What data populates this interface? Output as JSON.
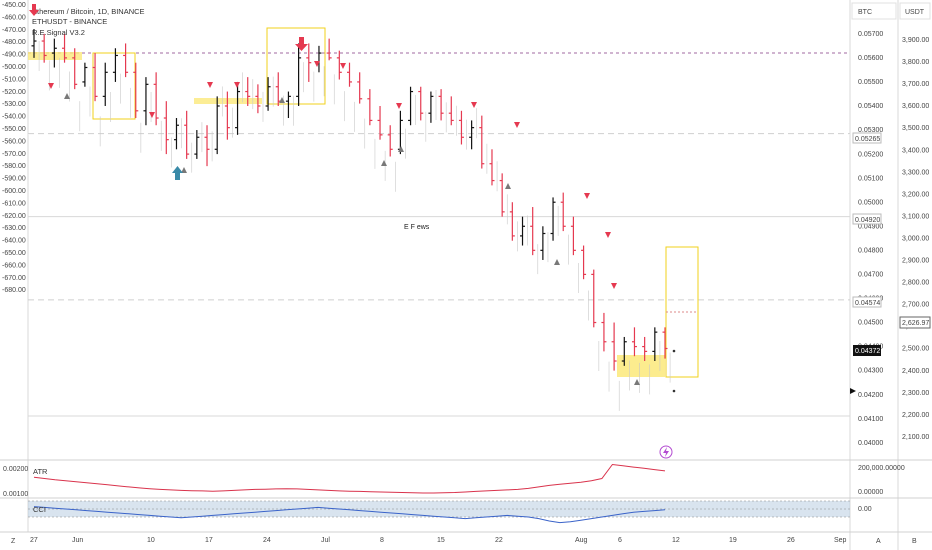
{
  "legend": {
    "line1": "Ethereum / Bitcoin, 1D, BINANCE",
    "line2": "ETHUSDT - BINANCE",
    "line3": "R.E.Signal V3.2"
  },
  "annotations": {
    "ewave": "E F ews",
    "atr_label": "ATR",
    "cci_label": "CCI"
  },
  "currency_btc": "BTC",
  "currency_usdt": "USDT",
  "bottom_icons": {
    "a": "A",
    "b": "B",
    "z": "Z"
  },
  "badges": {
    "btc_last": "0.04372",
    "usdt_last": "2,626.97",
    "lvl_05265": "0.05265",
    "lvl_04920": "0.04920",
    "lvl_04574": "0.04574"
  },
  "colors": {
    "bull": "#111111",
    "bear": "#e53950",
    "white_candle_outline": "#9b9b9b",
    "signal_up": "#787878",
    "signal_down": "#e53950",
    "box": "#f2d21b",
    "box_fill": "#fbe97a",
    "atr": "#d9334c",
    "cci": "#3a63c9",
    "cci_band": "#b9cde2",
    "arrow_down": "#e53950",
    "arrow_up": "#3a8aa8"
  },
  "chart_data": {
    "type": "candlestick",
    "left_axis": {
      "ticks": [
        "-450.00",
        "-460.00",
        "-470.00",
        "-480.00",
        "-490.00",
        "-500.00",
        "-510.00",
        "-520.00",
        "-530.00",
        "-540.00",
        "-550.00",
        "-560.00",
        "-570.00",
        "-580.00",
        "-590.00",
        "-600.00",
        "-610.00",
        "-620.00",
        "-630.00",
        "-640.00",
        "-650.00",
        "-660.00",
        "-670.00",
        "-680.00"
      ]
    },
    "btc_axis": {
      "ticks": [
        "0.05700",
        "0.05600",
        "0.05500",
        "0.05400",
        "0.05300",
        "0.05200",
        "0.05100",
        "0.05000",
        "0.04900",
        "0.04800",
        "0.04700",
        "0.04600",
        "0.04500",
        "0.04400",
        "0.04300",
        "0.04200",
        "0.04100",
        "0.04000"
      ]
    },
    "usdt_axis": {
      "ticks": [
        "3,900.00",
        "3,800.00",
        "3,700.00",
        "3,600.00",
        "3,500.00",
        "3,400.00",
        "3,300.00",
        "3,200.00",
        "3,100.00",
        "3,000.00",
        "2,900.00",
        "2,800.00",
        "2,700.00",
        "2,600.00",
        "2,500.00",
        "2,400.00",
        "2,300.00",
        "2,200.00",
        "2,100.00"
      ]
    },
    "x_axis": {
      "ticks": [
        "27",
        "Jun",
        "10",
        "17",
        "24",
        "Jul",
        "8",
        "15",
        "22",
        "Aug",
        "6",
        "12",
        "19",
        "26",
        "Sep"
      ]
    },
    "atr_axis": {
      "left_ticks": [
        "0.00200",
        "0.00100"
      ],
      "right_ticks": [
        "200,000.00000",
        "0.00000"
      ]
    },
    "cci_axis": {
      "right_ticks": [
        "0.00"
      ]
    },
    "horizontal_levels_btc": [
      0.05265,
      0.0492,
      0.04574
    ],
    "candles_btc": [
      [
        0.0563,
        0.057,
        0.0558,
        0.0565
      ],
      [
        0.0565,
        0.0568,
        0.0556,
        0.0559
      ],
      [
        0.056,
        0.0566,
        0.0554,
        0.0562
      ],
      [
        0.0562,
        0.0568,
        0.0556,
        0.0558
      ],
      [
        0.0558,
        0.0562,
        0.0545,
        0.0547
      ],
      [
        0.0548,
        0.0556,
        0.0546,
        0.0554
      ],
      [
        0.0554,
        0.056,
        0.054,
        0.0542
      ],
      [
        0.0542,
        0.0556,
        0.0538,
        0.0552
      ],
      [
        0.0552,
        0.0562,
        0.0548,
        0.0559
      ],
      [
        0.0559,
        0.0564,
        0.055,
        0.0552
      ],
      [
        0.0552,
        0.0556,
        0.0533,
        0.0536
      ],
      [
        0.0536,
        0.055,
        0.053,
        0.0547
      ],
      [
        0.0547,
        0.0552,
        0.053,
        0.0533
      ],
      [
        0.0533,
        0.054,
        0.0518,
        0.0524
      ],
      [
        0.0524,
        0.0533,
        0.052,
        0.053
      ],
      [
        0.053,
        0.0536,
        0.0516,
        0.0518
      ],
      [
        0.0518,
        0.0528,
        0.0516,
        0.0525
      ],
      [
        0.0525,
        0.053,
        0.0513,
        0.052
      ],
      [
        0.052,
        0.0542,
        0.0518,
        0.0538
      ],
      [
        0.0538,
        0.0544,
        0.0524,
        0.0529
      ],
      [
        0.0529,
        0.0548,
        0.0526,
        0.0544
      ],
      [
        0.0544,
        0.055,
        0.0538,
        0.0542
      ],
      [
        0.0542,
        0.0547,
        0.0535,
        0.0538
      ],
      [
        0.0538,
        0.055,
        0.0536,
        0.0546
      ],
      [
        0.0546,
        0.0552,
        0.0538,
        0.054
      ],
      [
        0.054,
        0.0544,
        0.0533,
        0.0542
      ],
      [
        0.0542,
        0.0564,
        0.0538,
        0.0558
      ],
      [
        0.0558,
        0.0564,
        0.0548,
        0.0556
      ],
      [
        0.0556,
        0.0563,
        0.0552,
        0.056
      ],
      [
        0.056,
        0.0566,
        0.0557,
        0.0558
      ],
      [
        0.0558,
        0.0561,
        0.0549,
        0.0552
      ],
      [
        0.0552,
        0.0556,
        0.0546,
        0.0548
      ],
      [
        0.0548,
        0.0552,
        0.0539,
        0.0541
      ],
      [
        0.0541,
        0.0545,
        0.053,
        0.0532
      ],
      [
        0.0532,
        0.0538,
        0.0524,
        0.0526
      ],
      [
        0.0526,
        0.053,
        0.0517,
        0.052
      ],
      [
        0.052,
        0.0536,
        0.0518,
        0.0532
      ],
      [
        0.0532,
        0.0546,
        0.053,
        0.0544
      ],
      [
        0.0544,
        0.0546,
        0.0532,
        0.0535
      ],
      [
        0.0535,
        0.0544,
        0.0531,
        0.0542
      ],
      [
        0.0542,
        0.0545,
        0.0532,
        0.0535
      ],
      [
        0.0535,
        0.0542,
        0.053,
        0.0532
      ],
      [
        0.0532,
        0.0536,
        0.0522,
        0.0525
      ],
      [
        0.0525,
        0.0532,
        0.052,
        0.0529
      ],
      [
        0.0529,
        0.0534,
        0.0512,
        0.0514
      ],
      [
        0.0514,
        0.052,
        0.0505,
        0.0507
      ],
      [
        0.0507,
        0.051,
        0.0492,
        0.0494
      ],
      [
        0.0494,
        0.0498,
        0.0482,
        0.0484
      ],
      [
        0.0484,
        0.0492,
        0.048,
        0.0488
      ],
      [
        0.0488,
        0.0496,
        0.0476,
        0.0478
      ],
      [
        0.0478,
        0.0488,
        0.0474,
        0.0485
      ],
      [
        0.0485,
        0.05,
        0.0482,
        0.0498
      ],
      [
        0.0498,
        0.0502,
        0.0486,
        0.0488
      ],
      [
        0.0488,
        0.0492,
        0.0476,
        0.0478
      ],
      [
        0.0478,
        0.048,
        0.0466,
        0.0468
      ],
      [
        0.0468,
        0.047,
        0.0446,
        0.0448
      ],
      [
        0.0448,
        0.0452,
        0.0436,
        0.044
      ],
      [
        0.044,
        0.0448,
        0.0428,
        0.0432
      ],
      [
        0.0432,
        0.0442,
        0.043,
        0.044
      ],
      [
        0.044,
        0.0446,
        0.0434,
        0.0438
      ],
      [
        0.0438,
        0.0442,
        0.0432,
        0.0436
      ],
      [
        0.0436,
        0.0446,
        0.0432,
        0.0444
      ],
      [
        0.0444,
        0.0446,
        0.0433,
        0.04372
      ]
    ],
    "atr_series": [
      0.0021,
      0.00205,
      0.002,
      0.00196,
      0.00192,
      0.00188,
      0.00184,
      0.0018,
      0.00176,
      0.00172,
      0.00168,
      0.00165,
      0.00162,
      0.0016,
      0.00158,
      0.00157,
      0.00156,
      0.00155,
      0.00156,
      0.00158,
      0.0016,
      0.00162,
      0.00163,
      0.00164,
      0.00165,
      0.00164,
      0.00162,
      0.0016,
      0.00158,
      0.00156,
      0.00155,
      0.00154,
      0.00153,
      0.00152,
      0.00151,
      0.0015,
      0.00149,
      0.00148,
      0.00148,
      0.00149,
      0.0015,
      0.00152,
      0.00154,
      0.00156,
      0.00158,
      0.0016,
      0.00162,
      0.00166,
      0.00172,
      0.00178,
      0.00182,
      0.00186,
      0.0019,
      0.00196,
      0.00205,
      0.0026,
      0.00255,
      0.0025,
      0.00245,
      0.0024,
      0.00235
    ],
    "cci_series": [
      30,
      20,
      10,
      0,
      -10,
      -20,
      -30,
      -40,
      -50,
      -60,
      -70,
      -80,
      -90,
      -100,
      -110,
      -100,
      -90,
      -80,
      -70,
      -60,
      -50,
      -40,
      -30,
      -20,
      -10,
      0,
      10,
      20,
      10,
      0,
      -10,
      -20,
      -30,
      -40,
      -50,
      -60,
      -70,
      -80,
      -90,
      -100,
      -110,
      -120,
      -110,
      -100,
      -90,
      -80,
      -90,
      -100,
      -120,
      -150,
      -170,
      -160,
      -140,
      -120,
      -100,
      -80,
      -60,
      -40,
      -30,
      -20,
      -10
    ]
  }
}
